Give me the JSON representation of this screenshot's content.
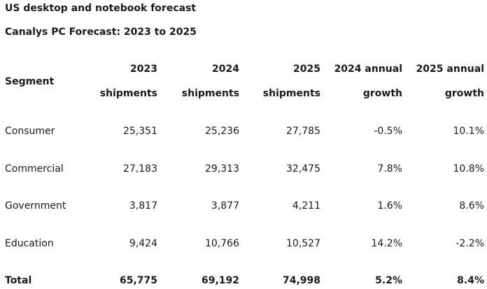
{
  "title": "US desktop and notebook forecast",
  "subtitle": "Canalys PC Forecast: 2023 to 2025",
  "table": {
    "segment_header": "Segment",
    "columns": [
      {
        "line1": "2023",
        "line2": "shipments"
      },
      {
        "line1": "2024",
        "line2": "shipments"
      },
      {
        "line1": "2025",
        "line2": "shipments"
      },
      {
        "line1": "2024 annual",
        "line2": "growth"
      },
      {
        "line1": "2025 annual",
        "line2": "growth"
      }
    ],
    "rows": [
      {
        "segment": "Consumer",
        "cells": [
          "25,351",
          "25,236",
          "27,785",
          "-0.5%",
          "10.1%"
        ]
      },
      {
        "segment": "Commercial",
        "cells": [
          "27,183",
          "29,313",
          "32,475",
          "7.8%",
          "10.8%"
        ]
      },
      {
        "segment": "Government",
        "cells": [
          "3,817",
          "3,877",
          "4,211",
          "1.6%",
          "8.6%"
        ]
      },
      {
        "segment": "Education",
        "cells": [
          "9,424",
          "10,766",
          "10,527",
          "14.2%",
          "-2.2%"
        ]
      },
      {
        "segment": "Total",
        "cells": [
          "65,775",
          "69,192",
          "74,998",
          "5.2%",
          "8.4%"
        ]
      }
    ]
  }
}
